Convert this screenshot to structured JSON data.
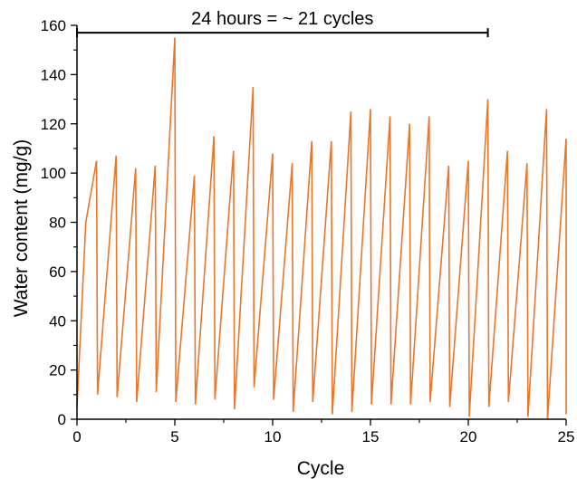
{
  "chart_data": {
    "type": "line",
    "xlabel": "Cycle",
    "ylabel": "Water content (mg/g)",
    "xlim": [
      0,
      25
    ],
    "ylim": [
      0,
      160
    ],
    "xticks": [
      0,
      5,
      10,
      15,
      20,
      25
    ],
    "yticks": [
      0,
      20,
      40,
      60,
      80,
      100,
      120,
      140,
      160
    ],
    "grid": false,
    "line_color": "#E8762B",
    "annotation": {
      "text": "24 hours = ~ 21 cycles",
      "x_start": 0,
      "x_end": 21,
      "y": 157
    },
    "series": [
      {
        "points": [
          [
            0,
            5
          ],
          [
            0.45,
            80
          ],
          [
            1,
            105
          ],
          [
            1.05,
            10
          ],
          [
            2,
            107
          ],
          [
            2.05,
            9
          ],
          [
            3,
            102
          ],
          [
            3.05,
            7
          ],
          [
            4,
            103
          ],
          [
            4.05,
            11
          ],
          [
            5,
            155
          ],
          [
            5.05,
            7
          ],
          [
            6,
            99
          ],
          [
            6.05,
            6
          ],
          [
            7,
            115
          ],
          [
            7.05,
            8
          ],
          [
            8,
            109
          ],
          [
            8.05,
            4
          ],
          [
            9,
            135
          ],
          [
            9.05,
            13
          ],
          [
            10,
            108
          ],
          [
            10.05,
            8
          ],
          [
            11,
            104
          ],
          [
            11.05,
            3
          ],
          [
            12,
            113
          ],
          [
            12.05,
            7
          ],
          [
            13,
            113
          ],
          [
            13.05,
            2
          ],
          [
            14,
            125
          ],
          [
            14.05,
            3
          ],
          [
            15,
            126
          ],
          [
            15.05,
            6
          ],
          [
            16,
            123
          ],
          [
            16.05,
            6
          ],
          [
            17,
            120
          ],
          [
            17.05,
            6
          ],
          [
            18,
            123
          ],
          [
            18.05,
            7
          ],
          [
            19,
            103
          ],
          [
            19.05,
            5
          ],
          [
            20,
            105
          ],
          [
            20.05,
            1
          ],
          [
            21,
            130
          ],
          [
            21.05,
            5
          ],
          [
            22,
            109
          ],
          [
            22.05,
            7
          ],
          [
            23,
            104
          ],
          [
            23.05,
            1
          ],
          [
            24,
            126
          ],
          [
            24.05,
            0
          ],
          [
            25,
            114
          ],
          [
            25,
            2
          ]
        ]
      }
    ]
  }
}
